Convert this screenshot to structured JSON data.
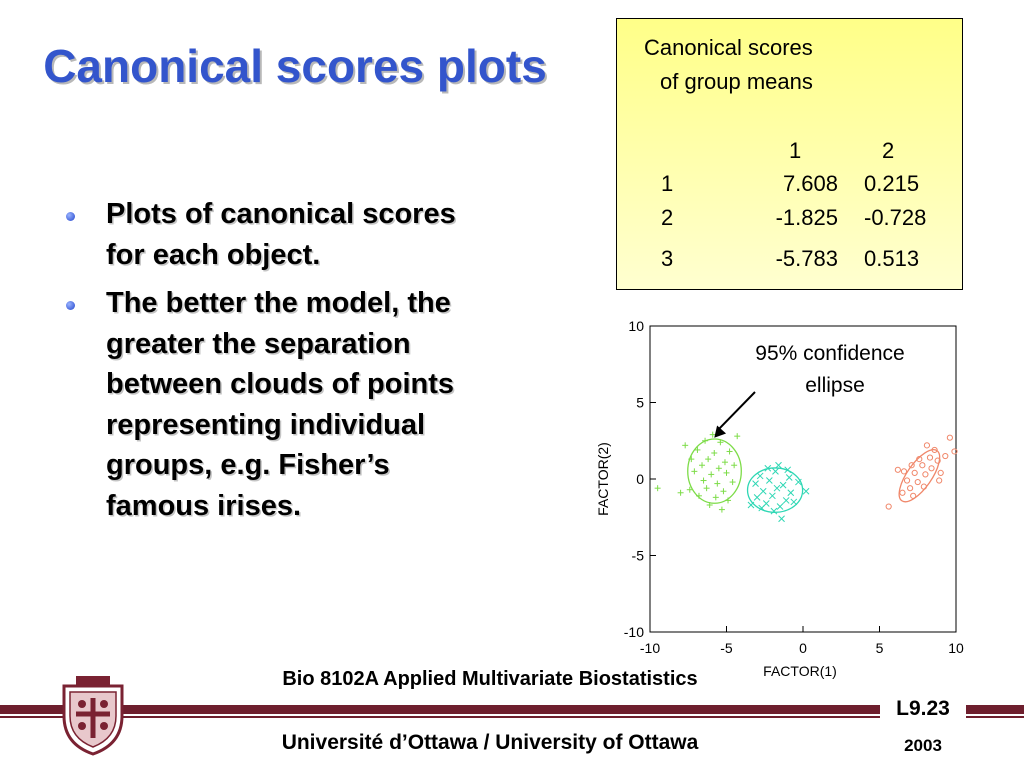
{
  "slide": {
    "title": "Canonical scores plots",
    "bullets": [
      "Plots of canonical scores for each object.",
      "The better the model, the greater the separation between clouds of points representing individual groups, e.g. Fisher’s famous irises."
    ]
  },
  "means_table": {
    "title_line1": "Canonical scores",
    "title_line2": "of group means",
    "columns": [
      "1",
      "2"
    ],
    "rows": [
      {
        "group": "1",
        "v1": "7.608",
        "v2": "0.215"
      },
      {
        "group": "2",
        "v1": "-1.825",
        "v2": "-0.728"
      },
      {
        "group": "3",
        "v1": "-5.783",
        "v2": "0.513"
      }
    ]
  },
  "chart_data": {
    "type": "scatter",
    "xlabel": "FACTOR(1)",
    "ylabel": "FACTOR(2)",
    "xlim": [
      -10,
      10
    ],
    "ylim": [
      -10,
      10
    ],
    "xticks": [
      -10,
      -5,
      0,
      5,
      10
    ],
    "yticks": [
      -10,
      -5,
      0,
      5,
      10
    ],
    "grid": false,
    "annotation": {
      "text_line1": "95% confidence",
      "text_line2": "ellipse",
      "arrow_to": [
        -5.8,
        2.7
      ]
    },
    "series": [
      {
        "marker": "+",
        "color": "#7ddc48",
        "ellipse": {
          "cx": -5.783,
          "cy": 0.513,
          "rx": 1.75,
          "ry": 2.1,
          "angle": 0
        },
        "points": [
          [
            -7.7,
            2.2
          ],
          [
            -6.4,
            2.5
          ],
          [
            -5.4,
            2.4
          ],
          [
            -6.9,
            1.9
          ],
          [
            -5.8,
            1.7
          ],
          [
            -4.8,
            1.8
          ],
          [
            -7.3,
            1.3
          ],
          [
            -6.2,
            1.3
          ],
          [
            -5.1,
            1.1
          ],
          [
            -6.6,
            0.9
          ],
          [
            -5.5,
            0.7
          ],
          [
            -4.5,
            0.9
          ],
          [
            -7.1,
            0.5
          ],
          [
            -6.0,
            0.3
          ],
          [
            -5.0,
            0.4
          ],
          [
            -6.5,
            -0.1
          ],
          [
            -5.6,
            -0.3
          ],
          [
            -4.6,
            -0.2
          ],
          [
            -7.4,
            -0.7
          ],
          [
            -6.3,
            -0.6
          ],
          [
            -5.2,
            -0.8
          ],
          [
            -6.8,
            -1.1
          ],
          [
            -5.7,
            -1.2
          ],
          [
            -4.9,
            -1.4
          ],
          [
            -6.1,
            -1.7
          ],
          [
            -5.3,
            -2.0
          ],
          [
            -9.5,
            -0.6
          ],
          [
            -4.3,
            2.8
          ],
          [
            -8.0,
            -0.9
          ],
          [
            -5.9,
            2.9
          ]
        ]
      },
      {
        "marker": "x",
        "color": "#2ed7b4",
        "ellipse": {
          "cx": -1.825,
          "cy": -0.728,
          "rx": 1.8,
          "ry": 1.45,
          "angle": 0
        },
        "points": [
          [
            -2.8,
            0.2
          ],
          [
            -1.8,
            0.5
          ],
          [
            -0.9,
            0.1
          ],
          [
            -3.1,
            -0.3
          ],
          [
            -2.2,
            -0.1
          ],
          [
            -1.3,
            -0.4
          ],
          [
            -2.6,
            -0.8
          ],
          [
            -1.7,
            -0.6
          ],
          [
            -0.8,
            -0.9
          ],
          [
            -3.0,
            -1.2
          ],
          [
            -2.0,
            -1.1
          ],
          [
            -1.1,
            -1.4
          ],
          [
            -2.4,
            -1.6
          ],
          [
            -1.5,
            -1.8
          ],
          [
            -0.6,
            -1.5
          ],
          [
            -1.9,
            -2.1
          ],
          [
            -2.3,
            0.7
          ],
          [
            -1.0,
            0.6
          ],
          [
            0.2,
            -0.8
          ],
          [
            -3.4,
            -1.7
          ],
          [
            -1.4,
            -2.6
          ],
          [
            -2.7,
            -1.9
          ],
          [
            -0.3,
            -0.2
          ],
          [
            -1.6,
            0.9
          ]
        ]
      },
      {
        "marker": "o",
        "color": "#f0876a",
        "ellipse": {
          "cx": 7.608,
          "cy": 0.215,
          "rx": 0.8,
          "ry": 2.0,
          "angle": 35
        },
        "points": [
          [
            6.5,
            -0.9
          ],
          [
            7.0,
            -0.6
          ],
          [
            7.5,
            -0.2
          ],
          [
            8.0,
            0.3
          ],
          [
            8.4,
            0.7
          ],
          [
            8.8,
            1.2
          ],
          [
            6.8,
            -0.1
          ],
          [
            7.3,
            0.4
          ],
          [
            7.8,
            0.9
          ],
          [
            8.3,
            1.4
          ],
          [
            9.0,
            0.4
          ],
          [
            7.2,
            -1.1
          ],
          [
            6.6,
            0.5
          ],
          [
            8.6,
            1.9
          ],
          [
            9.3,
            1.5
          ],
          [
            7.9,
            -0.5
          ],
          [
            8.1,
            2.2
          ],
          [
            5.6,
            -1.8
          ],
          [
            9.6,
            2.7
          ],
          [
            6.2,
            0.6
          ],
          [
            7.6,
            1.3
          ],
          [
            8.9,
            -0.1
          ],
          [
            9.9,
            1.8
          ],
          [
            7.1,
            0.9
          ]
        ]
      }
    ]
  },
  "footer": {
    "course": "Bio 8102A Applied Multivariate Biostatistics",
    "university": "Université d’Ottawa / University of Ottawa",
    "page": "L9.23",
    "year": "2003"
  }
}
